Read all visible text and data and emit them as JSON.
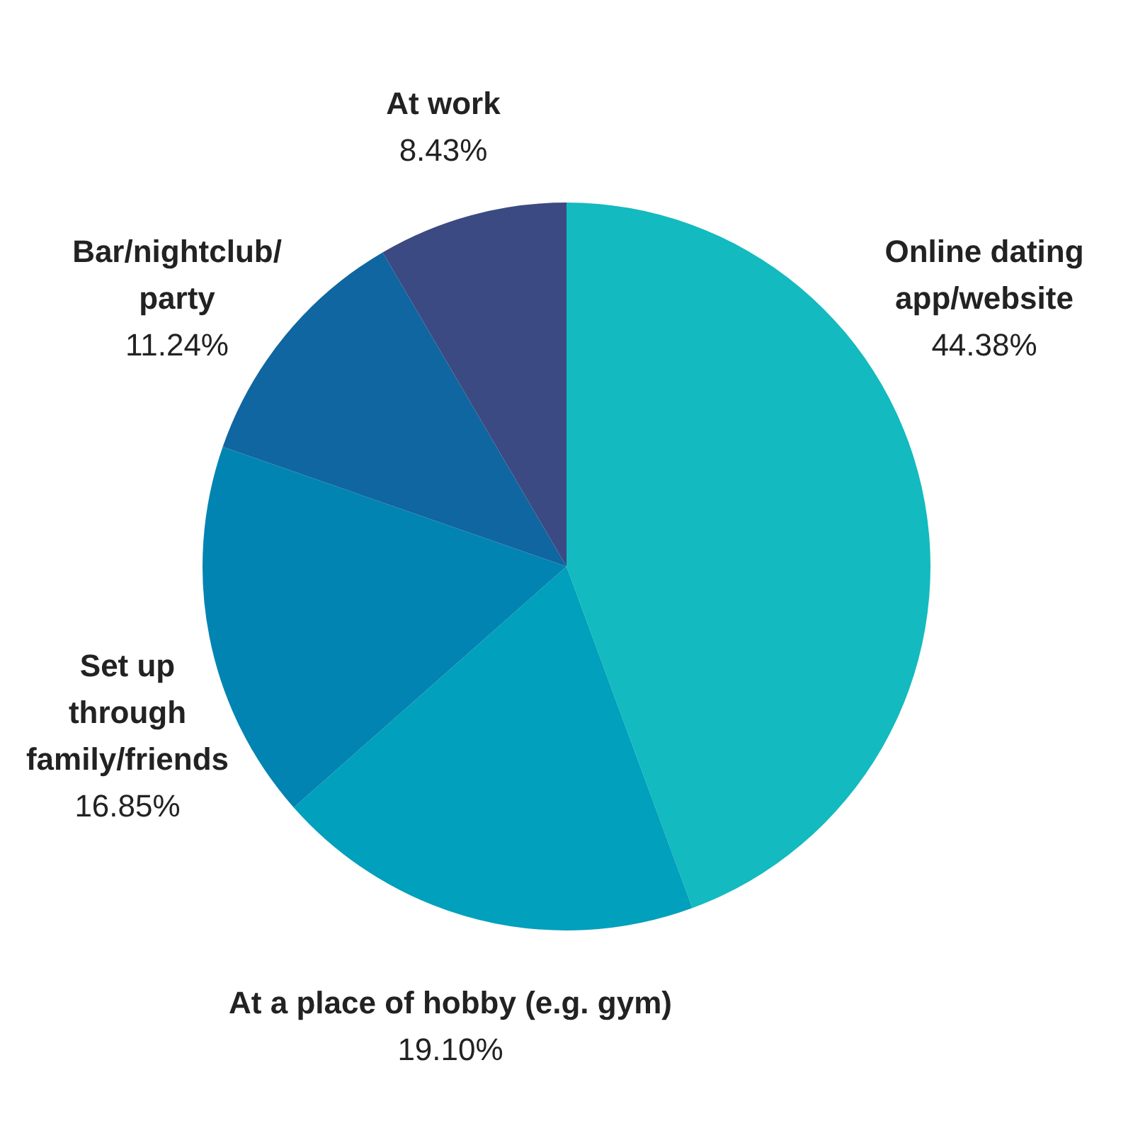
{
  "chart_data": {
    "type": "pie",
    "categories": [
      "Online dating app/website",
      "At a place of hobby (e.g. gym)",
      "Set up through family/friends",
      "Bar/nightclub/party",
      "At work"
    ],
    "values": [
      44.38,
      19.1,
      16.85,
      11.24,
      8.43
    ],
    "colors": [
      "#13babf",
      "#01a0bc",
      "#0284b2",
      "#0f66a0",
      "#3b4a82"
    ],
    "value_labels": [
      "44.38%",
      "19.10%",
      "16.85%",
      "11.24%",
      "8.43%"
    ],
    "legend": false
  }
}
